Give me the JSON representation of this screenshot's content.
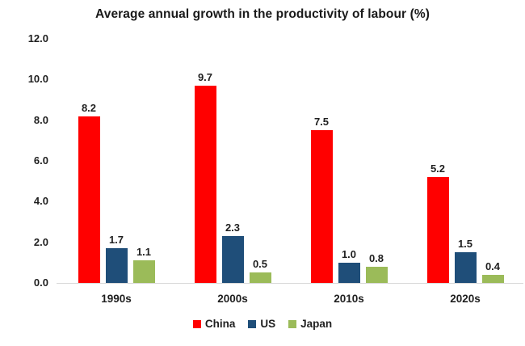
{
  "chart_data": {
    "type": "bar",
    "title": "Average annual growth in the productivity of labour (%)",
    "categories": [
      "1990s",
      "2000s",
      "2010s",
      "2020s"
    ],
    "series": [
      {
        "name": "China",
        "color": "#ff0000",
        "values": [
          8.2,
          9.7,
          7.5,
          5.2
        ]
      },
      {
        "name": "US",
        "color": "#1f4e79",
        "values": [
          1.7,
          2.3,
          1.0,
          1.5
        ]
      },
      {
        "name": "Japan",
        "color": "#9bbb59",
        "values": [
          1.1,
          0.5,
          0.8,
          0.4
        ]
      }
    ],
    "xlabel": "",
    "ylabel": "",
    "ylim": [
      0,
      12
    ],
    "yticks": [
      0,
      2,
      4,
      6,
      8,
      10,
      12
    ],
    "ytick_labels": [
      "0.0",
      "2.0",
      "4.0",
      "6.0",
      "8.0",
      "10.0",
      "12.0"
    ],
    "grid": false,
    "legend_position": "bottom",
    "axis_line_color": "#d9d9d9",
    "text_color": "#1f1f1f",
    "background_color": "#ffffff"
  }
}
